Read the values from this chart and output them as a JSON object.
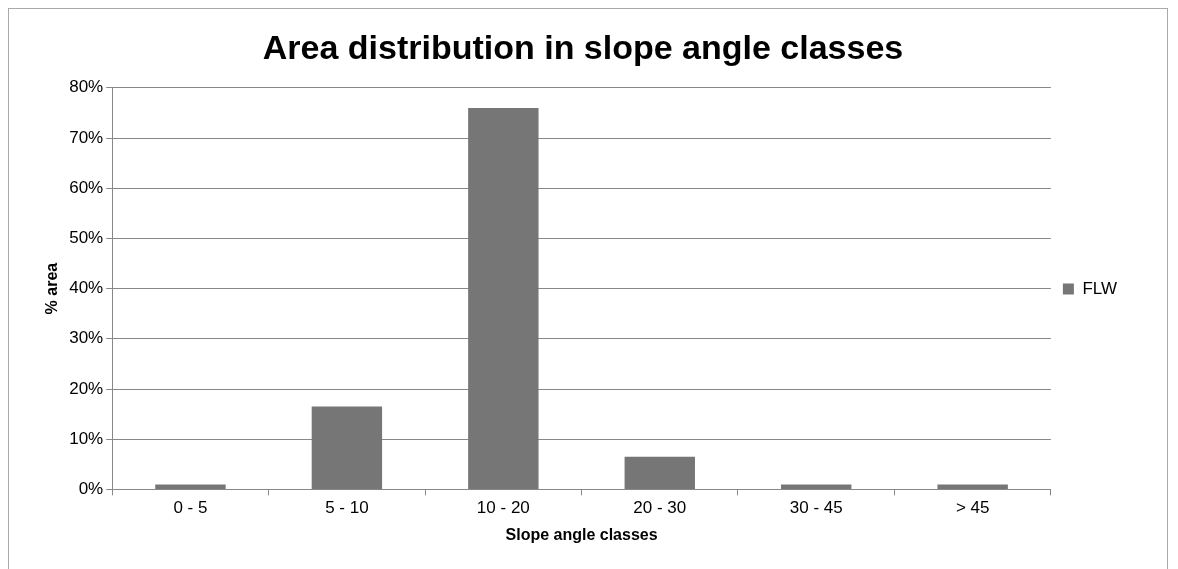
{
  "chart_data": {
    "type": "bar",
    "title": "Area distribution in slope angle classes",
    "xlabel": "Slope angle classes",
    "ylabel": "% area",
    "categories": [
      "0 - 5",
      "5 - 10",
      "10 - 20",
      "20 - 30",
      "30 - 45",
      "> 45"
    ],
    "series": [
      {
        "name": "FLW",
        "color": "#767676",
        "values": [
          1,
          16.5,
          76,
          6.5,
          1,
          1
        ]
      }
    ],
    "ylim": [
      0,
      80
    ],
    "yticks": [
      {
        "value": 0,
        "label": "0%"
      },
      {
        "value": 10,
        "label": "10%"
      },
      {
        "value": 20,
        "label": "20%"
      },
      {
        "value": 30,
        "label": "30%"
      },
      {
        "value": 40,
        "label": "40%"
      },
      {
        "value": 50,
        "label": "50%"
      },
      {
        "value": 60,
        "label": "60%"
      },
      {
        "value": 70,
        "label": "70%"
      },
      {
        "value": 80,
        "label": "80%"
      }
    ],
    "grid": "y",
    "legend": "right"
  }
}
